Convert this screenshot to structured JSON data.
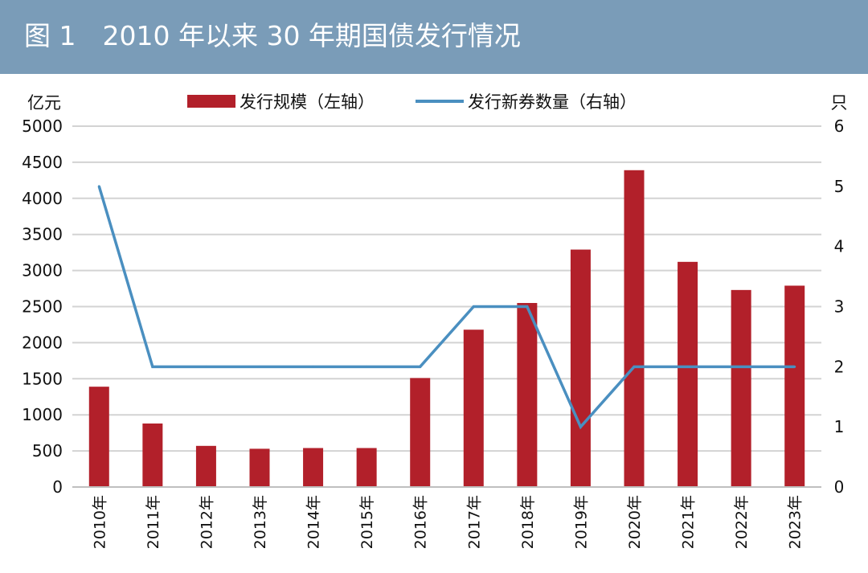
{
  "figure": {
    "title": "图 1　2010 年以来 30 年期国债发行情况"
  },
  "colors": {
    "title_bar": "#7a9cb8",
    "bar": "#b2202a",
    "line": "#4a8fc0",
    "grid": "#d3d3d3"
  },
  "chart_data": {
    "type": "bar",
    "categories": [
      "2010年",
      "2011年",
      "2012年",
      "2013年",
      "2014年",
      "2015年",
      "2016年",
      "2017年",
      "2018年",
      "2019年",
      "2020年",
      "2021年",
      "2022年",
      "2023年"
    ],
    "series": [
      {
        "name": "发行规模（左轴）",
        "type": "bar",
        "axis": "left",
        "values": [
          1390,
          880,
          570,
          530,
          540,
          540,
          1510,
          2180,
          2550,
          3290,
          4390,
          3120,
          2730,
          2790
        ]
      },
      {
        "name": "发行新券数量（右轴）",
        "type": "line",
        "axis": "right",
        "values": [
          5,
          2,
          2,
          2,
          2,
          2,
          2,
          3,
          3,
          1,
          2,
          2,
          2,
          2
        ]
      }
    ],
    "ylabel_left": "亿元",
    "ylabel_right": "只",
    "ylim_left": [
      0,
      5000
    ],
    "ylim_right": [
      0,
      6
    ],
    "yticks_left": [
      "0",
      "500",
      "1000",
      "1500",
      "2000",
      "2500",
      "3000",
      "3500",
      "4000",
      "4500",
      "5000"
    ],
    "yticks_right": [
      "0",
      "1",
      "2",
      "3",
      "4",
      "5",
      "6"
    ],
    "grid": true,
    "legend_position": "top-center"
  }
}
